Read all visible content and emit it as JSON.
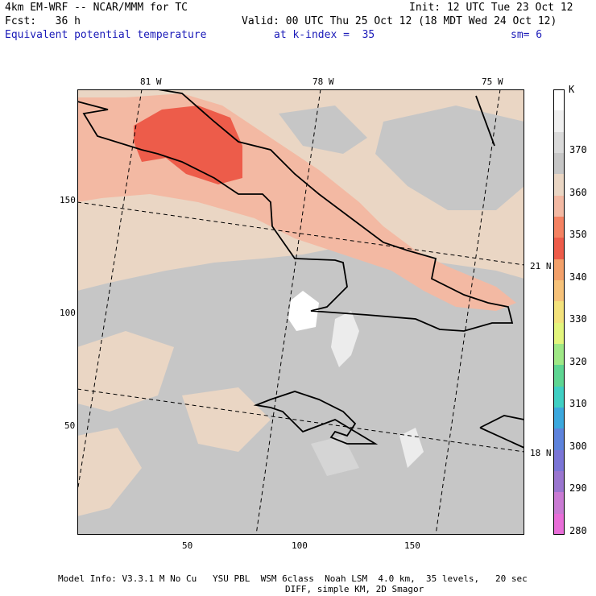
{
  "header": {
    "line1_left": "4km EM-WRF -- NCAR/MMM for TC",
    "line1_right": "Init: 12 UTC Tue 23 Oct 12",
    "line2_left": "Fcst:   36 h",
    "line2_right": "Valid: 00 UTC Thu 25 Oct 12 (18 MDT Wed 24 Oct 12)",
    "field_name": "Equivalent potential temperature",
    "k_index": "at k-index =  35",
    "smoothing": "sm= 6"
  },
  "map": {
    "lon_labels": [
      "81 W",
      "78 W",
      "75 W"
    ],
    "lat_labels": [
      "21 N",
      "18 N"
    ],
    "x_ticks": [
      "50",
      "100",
      "150"
    ],
    "y_ticks": [
      "150",
      "100",
      "50"
    ]
  },
  "legend": {
    "unit": "K",
    "levels": [
      "370",
      "360",
      "350",
      "340",
      "330",
      "320",
      "310",
      "300",
      "290",
      "280"
    ],
    "colors": [
      "#ffffff",
      "#efefef",
      "#d9d9d9",
      "#c6c6c6",
      "#ead6c4",
      "#f3b9a3",
      "#f48262",
      "#ed5c4a",
      "#f2a06a",
      "#f6c27a",
      "#f3e27c",
      "#e3f57d",
      "#9fe886",
      "#5ed592",
      "#40cfc3",
      "#3ca8dd",
      "#5e83dc",
      "#7b75d6",
      "#9a76cf",
      "#c97bd3",
      "#e86ed8"
    ]
  },
  "footer": {
    "line1": "Model Info: V3.3.1 M No Cu   YSU PBL  WSM 6class  Noah LSM  4.0 km,  35 levels,   20 sec",
    "line2": "DIFF, simple KM, 2D Smagor"
  }
}
